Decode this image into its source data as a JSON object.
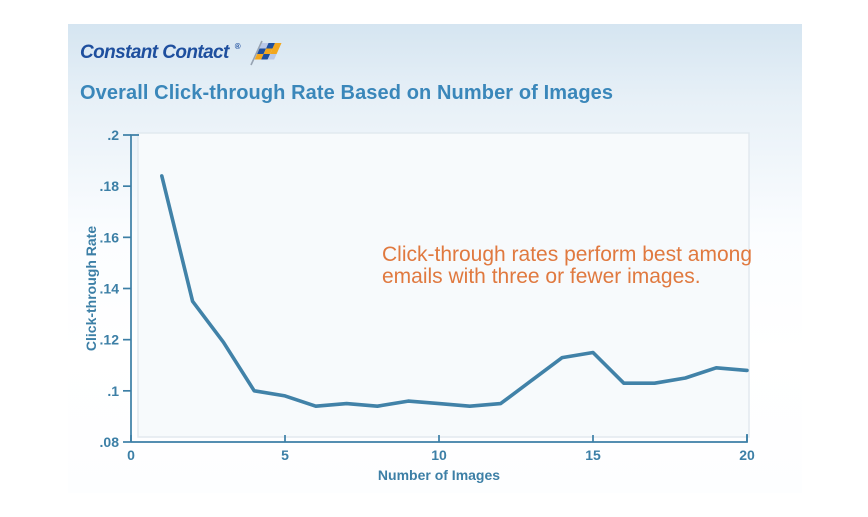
{
  "logo": {
    "text": "Constant Contact",
    "registered": "®",
    "icon": "checkered-flag-icon",
    "text_color": "#1e4f9e",
    "flag_colors": {
      "gold": "#f2a71e",
      "navy": "#1e4f9e",
      "light_blue": "#b9c8e8",
      "pole_gray": "#97a3b2"
    }
  },
  "title": {
    "text": "Overall Click-through Rate Based on Number of Images",
    "color": "#3a87ba"
  },
  "annotation": {
    "lines": [
      "Click-through rates perform best among",
      "emails with three or fewer images."
    ],
    "color": "#e0793f"
  },
  "chart_data": {
    "type": "line",
    "title": "Overall Click-through Rate Based on Number of Images",
    "xlabel": "Number of Images",
    "ylabel": "Click-through Rate",
    "x": [
      1,
      2,
      3,
      4,
      5,
      6,
      7,
      8,
      9,
      10,
      11,
      12,
      13,
      14,
      15,
      16,
      17,
      18,
      19,
      20
    ],
    "values": [
      0.184,
      0.135,
      0.119,
      0.1,
      0.098,
      0.094,
      0.095,
      0.094,
      0.096,
      0.095,
      0.094,
      0.095,
      0.104,
      0.113,
      0.115,
      0.103,
      0.103,
      0.105,
      0.109,
      0.108
    ],
    "xlim": [
      0,
      20
    ],
    "ylim": [
      0.08,
      0.2
    ],
    "x_tick_values": [
      0,
      5,
      10,
      15,
      20
    ],
    "x_tick_labels": [
      "0",
      "5",
      "10",
      "15",
      "20"
    ],
    "y_tick_values": [
      0.2,
      0.18,
      0.16,
      0.14,
      0.12,
      0.1,
      0.08
    ],
    "y_tick_labels": [
      ".2",
      ".18",
      ".16",
      ".14",
      ".12",
      ".1",
      ".08"
    ],
    "grid": false,
    "legend": "none",
    "series_color": "#4182a8",
    "axis_color": "#3c7fa6",
    "label_color": "#3c7fa6",
    "plot_bg": "#f7fafc",
    "plot_border": "#e2e9ef"
  }
}
